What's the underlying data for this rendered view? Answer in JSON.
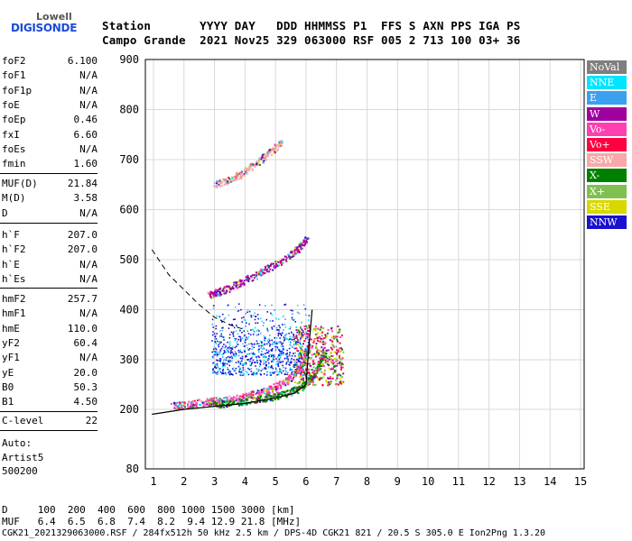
{
  "logo": {
    "line1": "Lowell",
    "line2": "DIGISONDE"
  },
  "header": {
    "row1": "Station       YYYY DAY   DDD HHMMSS P1  FFS S AXN PPS IGA PS",
    "row2": "Campo Grande  2021 Nov25 329 063000 RSF 005 2 713 100 03+ 36"
  },
  "params": {
    "g1": [
      {
        "name": "foF2",
        "value": "6.100"
      },
      {
        "name": "foF1",
        "value": "N/A"
      },
      {
        "name": "foF1p",
        "value": "N/A"
      },
      {
        "name": "foE",
        "value": "N/A"
      },
      {
        "name": "foEp",
        "value": "0.46"
      },
      {
        "name": "fxI",
        "value": "6.60"
      },
      {
        "name": "foEs",
        "value": "N/A"
      },
      {
        "name": "fmin",
        "value": "1.60"
      }
    ],
    "g2": [
      {
        "name": "MUF(D)",
        "value": "21.84"
      },
      {
        "name": "M(D)",
        "value": "3.58"
      },
      {
        "name": "D",
        "value": "N/A"
      }
    ],
    "g3": [
      {
        "name": "h`F",
        "value": "207.0"
      },
      {
        "name": "h`F2",
        "value": "207.0"
      },
      {
        "name": "h`E",
        "value": "N/A"
      },
      {
        "name": "h`Es",
        "value": "N/A"
      }
    ],
    "g4": [
      {
        "name": "hmF2",
        "value": "257.7"
      },
      {
        "name": "hmF1",
        "value": "N/A"
      },
      {
        "name": "hmE",
        "value": "110.0"
      },
      {
        "name": "yF2",
        "value": "60.4"
      },
      {
        "name": "yF1",
        "value": "N/A"
      },
      {
        "name": "yE",
        "value": "20.0"
      },
      {
        "name": "B0",
        "value": "50.3"
      },
      {
        "name": "B1",
        "value": "4.50"
      }
    ],
    "clevel": {
      "name": "C-level",
      "value": "22"
    },
    "auto_label": "Auto:",
    "artist": "Artist5",
    "artist_code": "500200"
  },
  "legend": [
    {
      "label": "NoVal",
      "color": "#7f7f7f"
    },
    {
      "label": "NNE",
      "color": "#00e5ff"
    },
    {
      "label": "E",
      "color": "#3aa0f0"
    },
    {
      "label": "W",
      "color": "#a000a0"
    },
    {
      "label": "Vo-",
      "color": "#ff40b0"
    },
    {
      "label": "Vo+",
      "color": "#ff0040"
    },
    {
      "label": "SSW",
      "color": "#f8a8a8"
    },
    {
      "label": "X-",
      "color": "#008000"
    },
    {
      "label": "X+",
      "color": "#80c050"
    },
    {
      "label": "SSE",
      "color": "#d8d800"
    },
    {
      "label": "NNW",
      "color": "#1a10d0"
    }
  ],
  "footer": {
    "row_d": "D     100  200  400  600  800 1000 1500 3000 [km]",
    "row_muf": "MUF   6.4  6.5  6.8  7.4  8.2  9.4 12.9 21.8 [MHz]",
    "row_info": "CGK21_2021329063000.RSF / 284fx512h 50 kHz 2.5 km / DPS-4D CGK21 821 / 20.5 S 305.0 E Ion2Png 1.3.20"
  },
  "chart_data": {
    "type": "scatter",
    "xlabel": "",
    "ylabel": "",
    "xlim": [
      0.9,
      15.1
    ],
    "ylim": [
      80,
      900
    ],
    "x_ticks": [
      "1",
      "2",
      "3",
      "4",
      "5",
      "6",
      "7",
      "8",
      "9",
      "10",
      "11",
      "12",
      "13",
      "14",
      "15"
    ],
    "y_ticks": [
      "80",
      "200",
      "300",
      "400",
      "500",
      "600",
      "700",
      "800",
      "900"
    ],
    "grid": true,
    "series": [
      {
        "name": "Vo-",
        "kind": "trace",
        "color": "#ff40b0",
        "x": [
          1.6,
          2.5,
          3.5,
          4.5,
          5.3,
          5.8,
          6.1
        ],
        "y": [
          208,
          214,
          222,
          235,
          255,
          285,
          330
        ]
      },
      {
        "name": "X-",
        "kind": "trace",
        "color": "#008000",
        "x": [
          2.8,
          3.5,
          4.5,
          5.3,
          5.9,
          6.3,
          6.6
        ],
        "y": [
          210,
          214,
          222,
          232,
          248,
          275,
          315
        ]
      },
      {
        "name": "W",
        "kind": "trace",
        "color": "#a000a0",
        "x": [
          2.8,
          3.5,
          4.5,
          5.5,
          6.0
        ],
        "y": [
          430,
          445,
          475,
          510,
          540
        ]
      },
      {
        "name": "SSW",
        "kind": "trace",
        "color": "#f8a8a8",
        "x": [
          3.0,
          3.8,
          4.5,
          5.2
        ],
        "y": [
          650,
          670,
          700,
          735
        ]
      },
      {
        "name": "NNW",
        "kind": "scatter",
        "color": "#1a10d0",
        "x": [
          3.0,
          5.6
        ],
        "y": [
          260,
          420
        ]
      }
    ],
    "profile_curve": {
      "x": [
        0.95,
        2.0,
        3.0,
        4.0,
        4.9,
        5.6,
        6.0,
        6.1,
        6.2
      ],
      "y": [
        190,
        200,
        206,
        212,
        222,
        232,
        250,
        330,
        400
      ]
    },
    "profile_dashed": {
      "x": [
        0.95,
        1.5,
        2.0,
        2.5,
        3.0,
        3.5,
        4.0
      ],
      "y": [
        520,
        470,
        440,
        410,
        385,
        370,
        360
      ]
    }
  }
}
